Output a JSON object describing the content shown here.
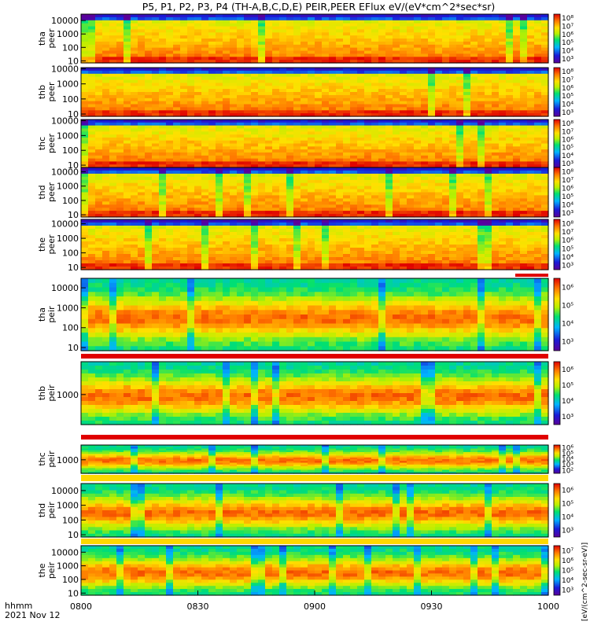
{
  "title": "P5, P1, P2, P3, P4 (TH-A,B,C,D,E) PEIR,PEER EFlux eV/(eV*cm^2*sec*sr)",
  "footer": {
    "time_label": "hhmm",
    "date_label": "2021 Nov 12"
  },
  "colorbar_unit_label": "[eV/(cm^2-sec-sr-eV)]",
  "chart_data": {
    "type": "heatmap",
    "x_ticks": [
      "0800",
      "0830",
      "0900",
      "0930",
      "1000"
    ],
    "x_range": [
      "0800",
      "1000"
    ],
    "y_scale": "log",
    "panels": [
      {
        "line1": "tha",
        "line2": "peer",
        "y_ticks": [
          "10",
          "100",
          "1000",
          "10000"
        ],
        "cbar_ticks": [
          "10³",
          "10⁴",
          "10⁵",
          "10⁶",
          "10⁷",
          "10⁸"
        ],
        "yrange": [
          7,
          30000
        ]
      },
      {
        "line1": "thb",
        "line2": "peer",
        "y_ticks": [
          "10",
          "100",
          "1000",
          "10000"
        ],
        "cbar_ticks": [
          "10³",
          "10⁴",
          "10⁵",
          "10⁶",
          "10⁷",
          "10⁸"
        ],
        "yrange": [
          7,
          12000
        ]
      },
      {
        "line1": "thc",
        "line2": "peer",
        "y_ticks": [
          "10",
          "100",
          "1000",
          "10000"
        ],
        "cbar_ticks": [
          "10³",
          "10⁴",
          "10⁵",
          "10⁶",
          "10⁷",
          "10⁸"
        ],
        "yrange": [
          7,
          12000
        ]
      },
      {
        "line1": "thd",
        "line2": "peer",
        "y_ticks": [
          "10",
          "100",
          "1000",
          "10000"
        ],
        "cbar_ticks": [
          "10³",
          "10⁴",
          "10⁵",
          "10⁶",
          "10⁷",
          "10⁸"
        ],
        "yrange": [
          7,
          20000
        ]
      },
      {
        "line1": "the",
        "line2": "peer",
        "y_ticks": [
          "10",
          "100",
          "1000",
          "10000"
        ],
        "cbar_ticks": [
          "10³",
          "10⁴",
          "10⁵",
          "10⁶",
          "10⁷",
          "10⁸"
        ],
        "yrange": [
          7,
          20000
        ]
      },
      {
        "line1": "tha",
        "line2": "peir",
        "y_ticks": [
          "10",
          "100",
          "1000",
          "10000"
        ],
        "cbar_ticks": [
          "10³",
          "10⁴",
          "10⁵",
          "10⁶"
        ],
        "yrange": [
          7,
          30000
        ]
      },
      {
        "line1": "thb",
        "line2": "peir",
        "y_ticks": [
          "1000"
        ],
        "cbar_ticks": [
          "10³",
          "10⁴",
          "10⁵",
          "10⁶"
        ],
        "yrange": [
          150,
          8000
        ]
      },
      {
        "line1": "thc",
        "line2": "peir",
        "y_ticks": [
          "1000"
        ],
        "cbar_ticks": [
          "10²",
          "10³",
          "10⁴",
          "10⁵",
          "10⁶"
        ],
        "yrange": [
          150,
          8000
        ]
      },
      {
        "line1": "thd",
        "line2": "peir",
        "y_ticks": [
          "10",
          "100",
          "1000",
          "10000"
        ],
        "cbar_ticks": [
          "10³",
          "10⁴",
          "10⁵",
          "10⁶"
        ],
        "yrange": [
          7,
          30000
        ]
      },
      {
        "line1": "the",
        "line2": "peir",
        "y_ticks": [
          "10",
          "100",
          "1000",
          "10000"
        ],
        "cbar_ticks": [
          "10³",
          "10⁴",
          "10⁵",
          "10⁶",
          "10⁷"
        ],
        "yrange": [
          7,
          30000
        ]
      }
    ]
  }
}
